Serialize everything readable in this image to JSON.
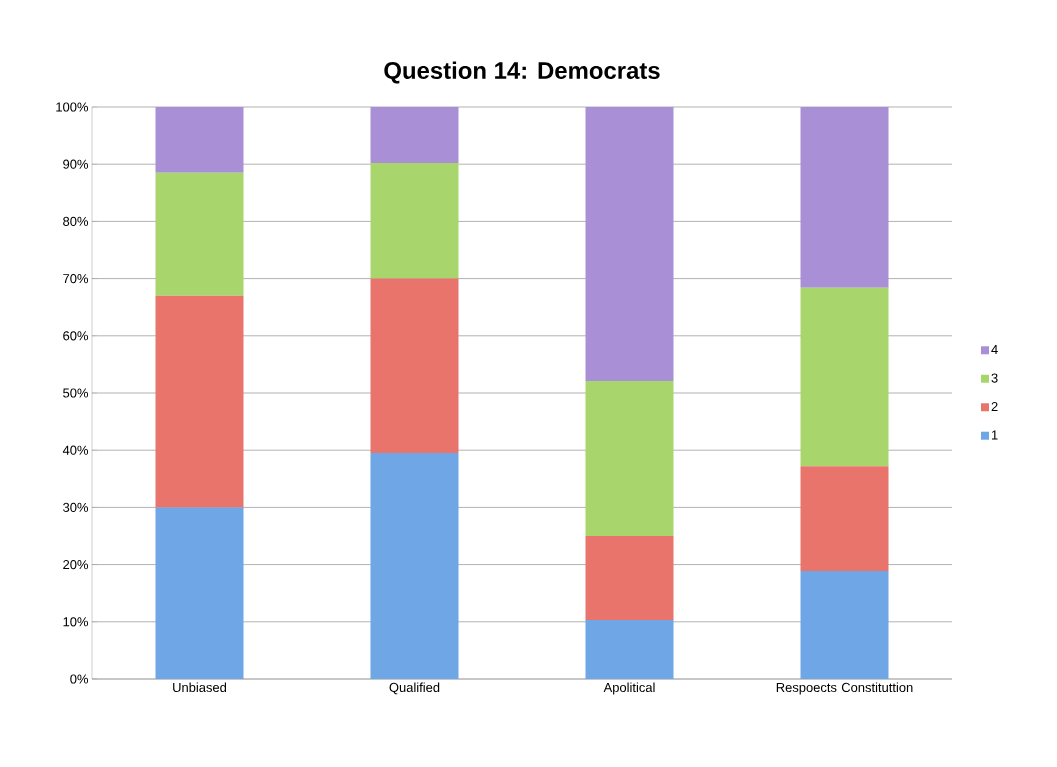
{
  "chart_data": {
    "type": "bar",
    "title": "Question 14: Democrats",
    "stacked": true,
    "categories": [
      "Unbiased",
      "Qualified",
      "Apolitical",
      "Respoects Constituttion"
    ],
    "series": [
      {
        "name": "1",
        "color": "#6fa6e6",
        "values": [
          30,
          39.5,
          10.3,
          18.9
        ]
      },
      {
        "name": "2",
        "color": "#e8746c",
        "values": [
          37,
          30.5,
          14.7,
          18.3
        ]
      },
      {
        "name": "3",
        "color": "#a8d66c",
        "values": [
          21.5,
          20.2,
          27.1,
          31.2
        ]
      },
      {
        "name": "4",
        "color": "#a98fd6",
        "values": [
          11.5,
          9.8,
          47.9,
          31.6
        ]
      }
    ],
    "ylim": [
      0,
      100
    ],
    "yticks": [
      {
        "value": 0,
        "label": "0%"
      },
      {
        "value": 10,
        "label": "10%"
      },
      {
        "value": 20,
        "label": "20%"
      },
      {
        "value": 30,
        "label": "30%"
      },
      {
        "value": 40,
        "label": "40%"
      },
      {
        "value": 50,
        "label": "50%"
      },
      {
        "value": 60,
        "label": "60%"
      },
      {
        "value": 70,
        "label": "70%"
      },
      {
        "value": 80,
        "label": "80%"
      },
      {
        "value": 90,
        "label": "90%"
      },
      {
        "value": 100,
        "label": "100%"
      }
    ],
    "grid": "y",
    "legend": "right"
  }
}
